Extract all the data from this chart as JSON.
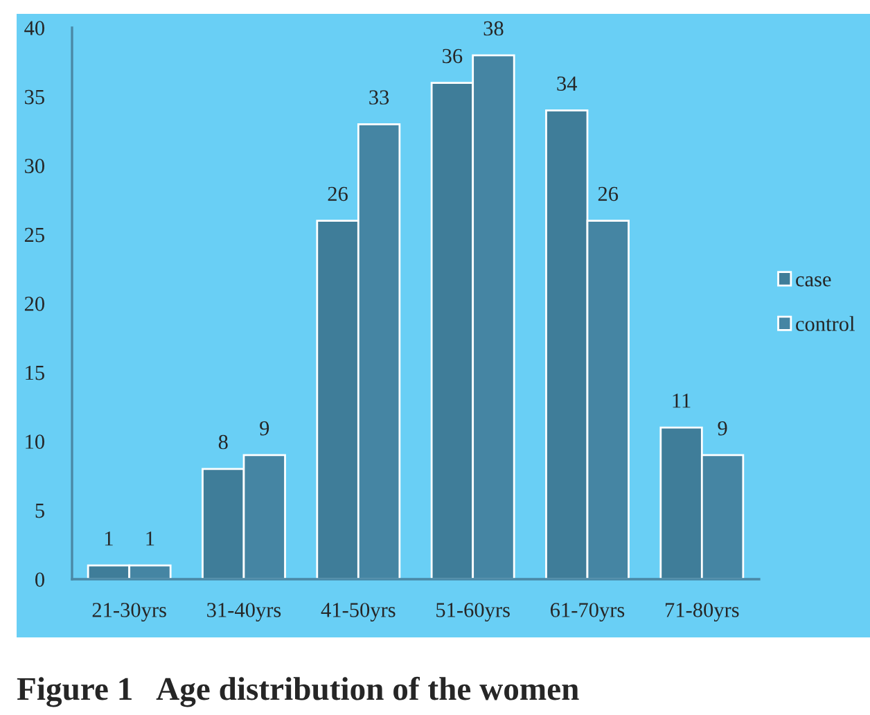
{
  "chart_data": {
    "type": "bar",
    "title": "Figure 1   Age distribution of the women",
    "categories": [
      "21-30yrs",
      "31-40yrs",
      "41-50yrs",
      "51-60yrs",
      "61-70yrs",
      "71-80yrs"
    ],
    "series": [
      {
        "name": "case",
        "color": "#3f7d99",
        "values": [
          1,
          8,
          26,
          36,
          34,
          11
        ]
      },
      {
        "name": "control",
        "color": "#4585a3",
        "values": [
          1,
          9,
          33,
          38,
          26,
          9
        ]
      }
    ],
    "ylim": [
      0,
      40
    ],
    "yticks": [
      0,
      5,
      10,
      15,
      20,
      25,
      30,
      35,
      40
    ],
    "grid": false,
    "legend": "right",
    "data_labels": true
  }
}
